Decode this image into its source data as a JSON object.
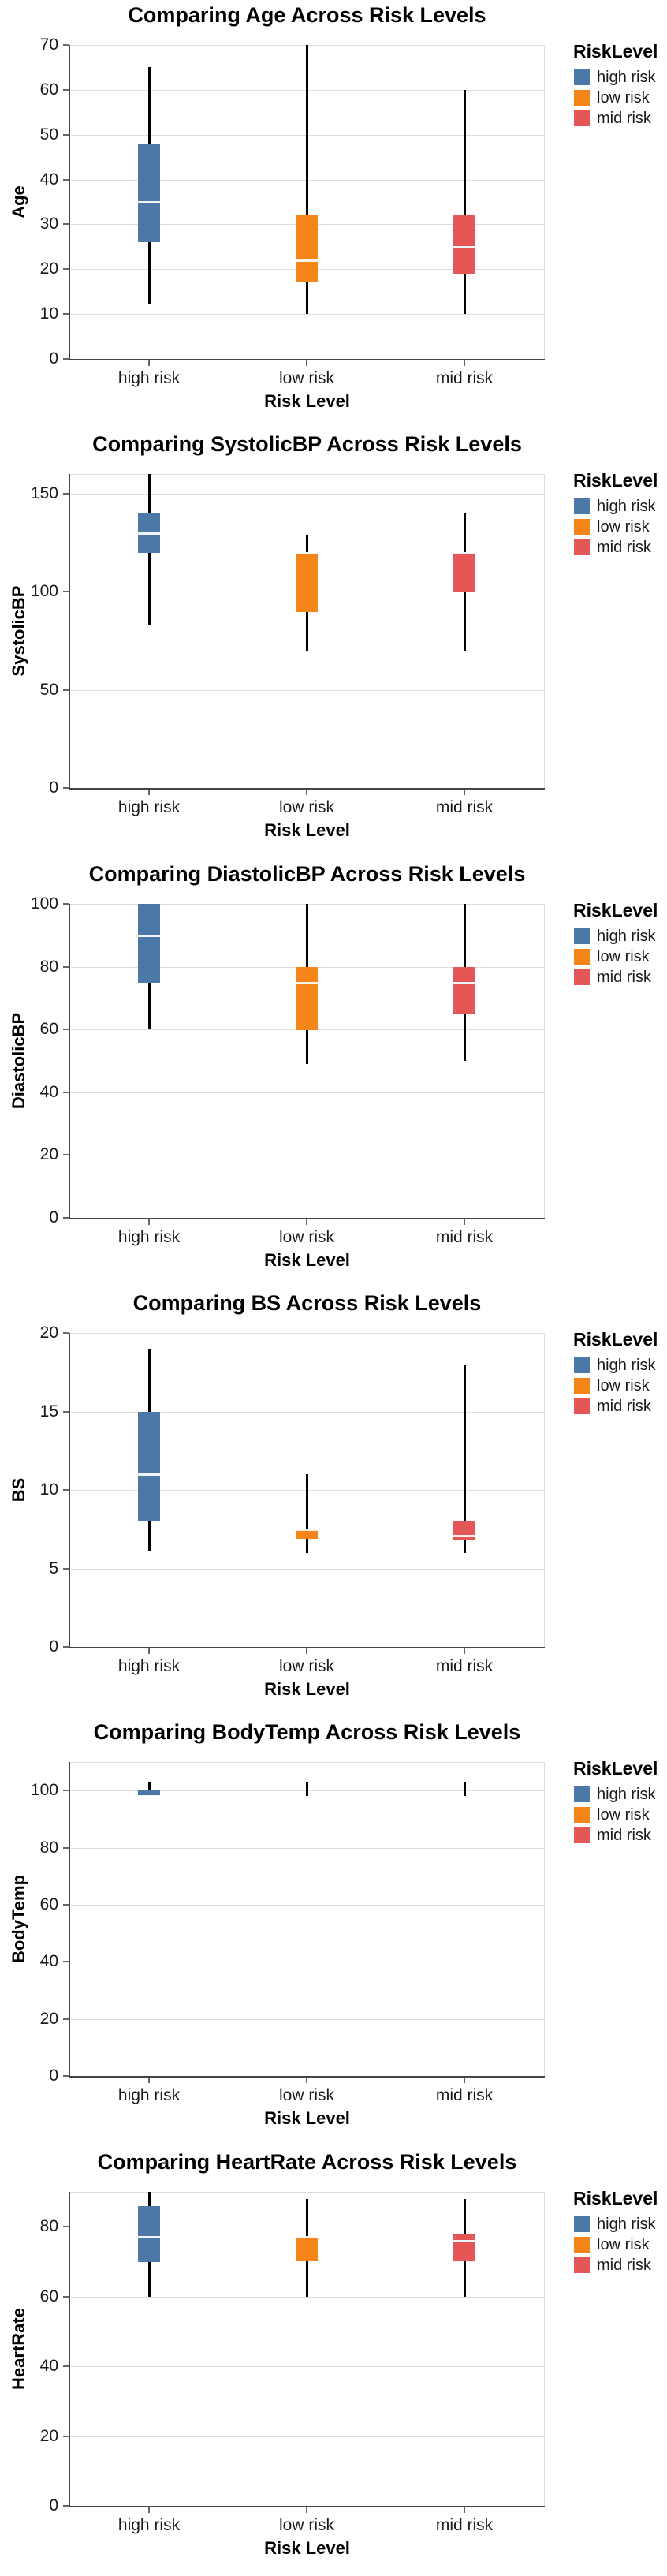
{
  "legend": {
    "title": "RiskLevel",
    "items": [
      {
        "label": "high risk",
        "color": "#4c78a8"
      },
      {
        "label": "low risk",
        "color": "#f58518"
      },
      {
        "label": "mid risk",
        "color": "#e45756"
      }
    ]
  },
  "colors": {
    "whisker": "#000000",
    "median": "#ffffff",
    "gridline": "#dddddd",
    "axis": "#444444"
  },
  "chart_data": [
    {
      "type": "boxplot",
      "title": "Comparing Age Across Risk Levels",
      "xlabel": "Risk Level",
      "ylabel": "Age",
      "ylim": [
        0,
        70
      ],
      "yticks": [
        0,
        10,
        20,
        30,
        40,
        50,
        60,
        70
      ],
      "categories": [
        "high risk",
        "low risk",
        "mid risk"
      ],
      "series": [
        {
          "name": "high risk",
          "color": "#4c78a8",
          "min": 12,
          "q1": 26,
          "median": 35,
          "q3": 48,
          "max": 65
        },
        {
          "name": "low risk",
          "color": "#f58518",
          "min": 10,
          "q1": 17,
          "median": 22,
          "q3": 32,
          "max": 70
        },
        {
          "name": "mid risk",
          "color": "#e45756",
          "min": 10,
          "q1": 19,
          "median": 25,
          "q3": 32,
          "max": 60
        }
      ]
    },
    {
      "type": "boxplot",
      "title": "Comparing SystolicBP Across Risk Levels",
      "xlabel": "Risk Level",
      "ylabel": "SystolicBP",
      "ylim": [
        0,
        160
      ],
      "yticks": [
        0,
        50,
        100,
        150
      ],
      "categories": [
        "high risk",
        "low risk",
        "mid risk"
      ],
      "series": [
        {
          "name": "high risk",
          "color": "#4c78a8",
          "min": 83,
          "q1": 120,
          "median": 130,
          "q3": 140,
          "max": 160
        },
        {
          "name": "low risk",
          "color": "#f58518",
          "min": 70,
          "q1": 90,
          "median": 120,
          "q3": 120,
          "max": 129
        },
        {
          "name": "mid risk",
          "color": "#e45756",
          "min": 70,
          "q1": 100,
          "median": 120,
          "q3": 120,
          "max": 140
        }
      ]
    },
    {
      "type": "boxplot",
      "title": "Comparing DiastolicBP Across Risk Levels",
      "xlabel": "Risk Level",
      "ylabel": "DiastolicBP",
      "ylim": [
        0,
        100
      ],
      "yticks": [
        0,
        20,
        40,
        60,
        80,
        100
      ],
      "categories": [
        "high risk",
        "low risk",
        "mid risk"
      ],
      "series": [
        {
          "name": "high risk",
          "color": "#4c78a8",
          "min": 60,
          "q1": 75,
          "median": 90,
          "q3": 100,
          "max": 100
        },
        {
          "name": "low risk",
          "color": "#f58518",
          "min": 49,
          "q1": 60,
          "median": 75,
          "q3": 80,
          "max": 100
        },
        {
          "name": "mid risk",
          "color": "#e45756",
          "min": 50,
          "q1": 65,
          "median": 75,
          "q3": 80,
          "max": 100
        }
      ]
    },
    {
      "type": "boxplot",
      "title": "Comparing BS Across Risk Levels",
      "xlabel": "Risk Level",
      "ylabel": "BS",
      "ylim": [
        0,
        20
      ],
      "yticks": [
        0,
        5,
        10,
        15,
        20
      ],
      "categories": [
        "high risk",
        "low risk",
        "mid risk"
      ],
      "series": [
        {
          "name": "high risk",
          "color": "#4c78a8",
          "min": 6.1,
          "q1": 8,
          "median": 11,
          "q3": 15,
          "max": 19
        },
        {
          "name": "low risk",
          "color": "#f58518",
          "min": 6,
          "q1": 6.9,
          "median": 7.5,
          "q3": 7.5,
          "max": 11
        },
        {
          "name": "mid risk",
          "color": "#e45756",
          "min": 6,
          "q1": 6.8,
          "median": 7.1,
          "q3": 8,
          "max": 18
        }
      ]
    },
    {
      "type": "boxplot",
      "title": "Comparing BodyTemp Across Risk Levels",
      "xlabel": "Risk Level",
      "ylabel": "BodyTemp",
      "ylim": [
        0,
        110
      ],
      "yticks": [
        0,
        20,
        40,
        60,
        80,
        100
      ],
      "categories": [
        "high risk",
        "low risk",
        "mid risk"
      ],
      "series": [
        {
          "name": "high risk",
          "color": "#4c78a8",
          "min": 98,
          "q1": 98,
          "median": 98,
          "q3": 100,
          "max": 103
        },
        {
          "name": "low risk",
          "color": "#f58518",
          "min": 98,
          "q1": 98,
          "median": 98,
          "q3": 98,
          "max": 103
        },
        {
          "name": "mid risk",
          "color": "#e45756",
          "min": 98,
          "q1": 98,
          "median": 98,
          "q3": 98,
          "max": 103
        }
      ]
    },
    {
      "type": "boxplot",
      "title": "Comparing HeartRate Across Risk Levels",
      "xlabel": "Risk Level",
      "ylabel": "HeartRate",
      "ylim": [
        0,
        90
      ],
      "yticks": [
        0,
        20,
        40,
        60,
        80
      ],
      "categories": [
        "high risk",
        "low risk",
        "mid risk"
      ],
      "series": [
        {
          "name": "high risk",
          "color": "#4c78a8",
          "min": 60,
          "q1": 70,
          "median": 77,
          "q3": 86,
          "max": 90
        },
        {
          "name": "low risk",
          "color": "#f58518",
          "min": 60,
          "q1": 70,
          "median": 77,
          "q3": 77,
          "max": 88
        },
        {
          "name": "mid risk",
          "color": "#e45756",
          "min": 60,
          "q1": 70,
          "median": 76,
          "q3": 78,
          "max": 88
        }
      ]
    }
  ]
}
